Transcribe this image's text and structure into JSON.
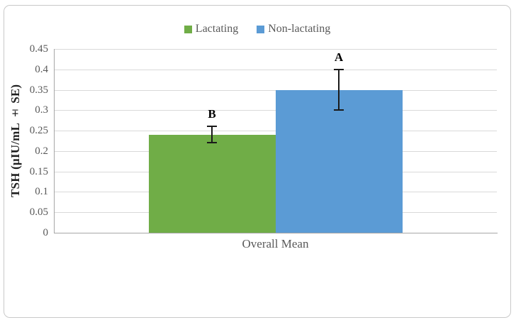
{
  "figure": {
    "background_color": "#ffffff",
    "border_color": "#c9c9c9",
    "text_color": "#595959",
    "gridline_color": "#d9d9d9",
    "axis_line_color": "#a6a6a6",
    "error_bar_color": "#1a1a1a"
  },
  "chart_data": {
    "type": "bar",
    "title": "",
    "categories": [
      "Overall Mean"
    ],
    "series": [
      {
        "name": "Lactating",
        "color": "#70AD47",
        "values": [
          0.24
        ],
        "se": [
          0.02
        ],
        "sig_labels": [
          "B"
        ]
      },
      {
        "name": "Non-lactating",
        "color": "#5B9BD5",
        "values": [
          0.35
        ],
        "se": [
          0.05
        ],
        "sig_labels": [
          "A"
        ]
      }
    ],
    "xlabel": "",
    "ylabel": "TSH (µIU/mL ± SE)",
    "ylim": [
      0,
      0.45
    ],
    "yticks": [
      0,
      0.05,
      0.1,
      0.15,
      0.2,
      0.25,
      0.3,
      0.35,
      0.4,
      0.45
    ],
    "ytick_labels": [
      "0",
      "0.05",
      "0.1",
      "0.15",
      "0.2",
      "0.25",
      "0.3",
      "0.35",
      "0.4",
      "0.45"
    ],
    "grid": true,
    "legend_position": "top"
  }
}
